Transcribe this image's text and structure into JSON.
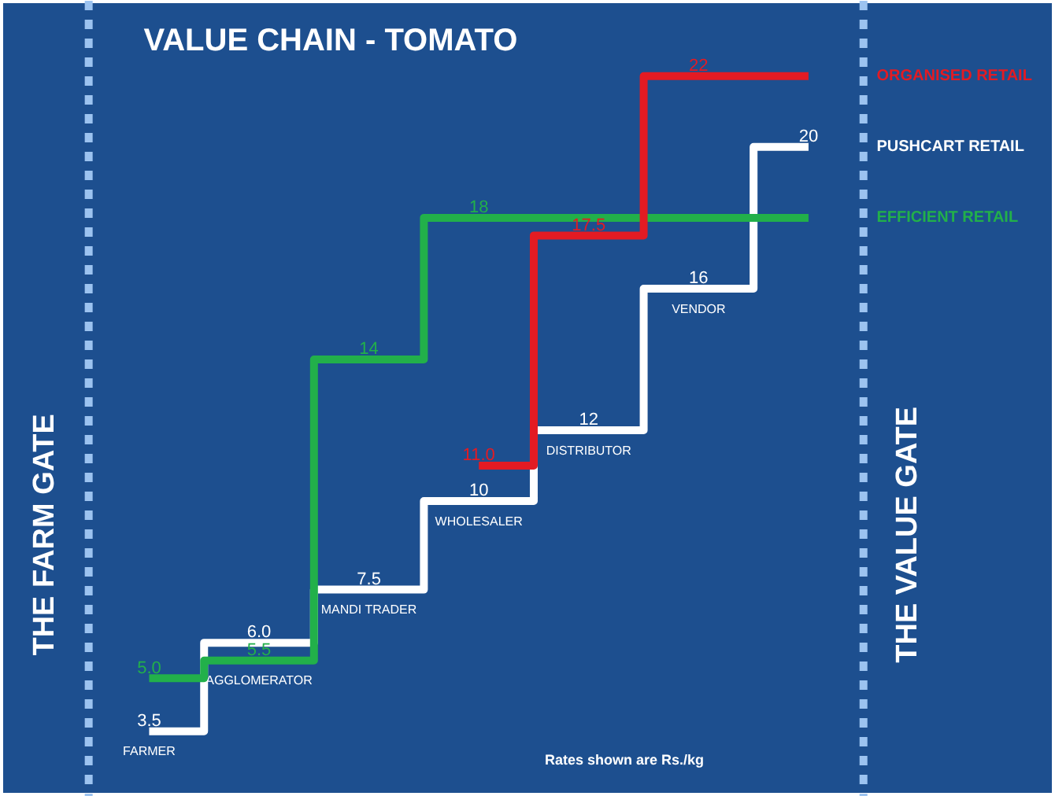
{
  "chart_data": {
    "type": "step",
    "title": "VALUE CHAIN - TOMATO",
    "categories": [
      "FARMER",
      "AGGLOMERATOR",
      "MANDI TRADER",
      "WHOLESALER",
      "DISTRIBUTOR",
      "VENDOR",
      null
    ],
    "tick_labels": "x",
    "line_style": "solid",
    "series": [
      {
        "name": "PUSHCART RETAIL",
        "color": "#ffffff",
        "values": [
          3.5,
          6.0,
          7.5,
          10,
          12,
          16,
          20
        ],
        "value_labels": [
          "3.5",
          "6.0",
          "7.5",
          "10",
          "12",
          "16",
          "20"
        ]
      },
      {
        "name": "EFFICIENT RETAIL",
        "color": "#22b04a",
        "values": [
          5.0,
          5.5,
          14,
          18,
          18,
          18,
          18
        ],
        "value_labels": [
          "5.0",
          "5.5",
          "14",
          "18",
          null,
          null,
          null
        ]
      },
      {
        "name": "ORGANISED RETAIL",
        "color": "#e31b23",
        "values": [
          null,
          null,
          null,
          11.0,
          17.5,
          22,
          22
        ],
        "value_labels": [
          null,
          null,
          null,
          "11.0",
          "17.5",
          "22",
          null
        ]
      }
    ],
    "annotations": [
      "THE FARM GATE",
      "THE VALUE GATE",
      "Rates shown are Rs./kg"
    ]
  }
}
